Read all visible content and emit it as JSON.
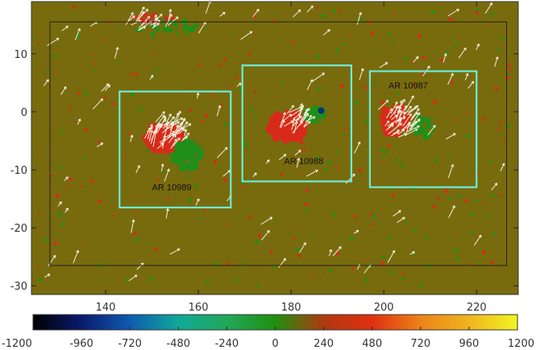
{
  "chart_data": {
    "type": "map",
    "x_ticks": [
      "140",
      "160",
      "180",
      "200",
      "220"
    ],
    "x_tick_values": [
      140,
      160,
      180,
      200,
      220
    ],
    "y_ticks": [
      "10",
      "0",
      "-10",
      "-20",
      "-30"
    ],
    "y_tick_values": [
      10,
      0,
      -10,
      -20,
      -30
    ],
    "xlim": [
      124,
      229
    ],
    "ylim": [
      -31.5,
      19
    ],
    "inner_frame": {
      "x": [
        128,
        226.5
      ],
      "y": [
        -26.5,
        15.5
      ]
    },
    "background_color": "#786b0d",
    "positive_color": "#d82a1a",
    "negative_color": "#1f8f1a",
    "arrow_color": "#f4efdc",
    "box_color": "#6cecd9",
    "regions": [
      {
        "label": "AR 10989",
        "x0": 143,
        "x1": 167,
        "y0": -16.5,
        "y1": 3.5,
        "label_at": [
          150,
          -13.5
        ]
      },
      {
        "label": "AR 10988",
        "x0": 169.5,
        "x1": 193,
        "y0": -12,
        "y1": 8,
        "label_at": [
          178.5,
          -9
        ]
      },
      {
        "label": "AR 10987",
        "x0": 197,
        "x1": 220,
        "y0": -13,
        "y1": 7,
        "label_at": [
          201,
          4
        ]
      }
    ],
    "colorbar": {
      "ticks": [
        "-1200",
        "-960",
        "-720",
        "-480",
        "-240",
        "0",
        "240",
        "480",
        "720",
        "960",
        "1200"
      ],
      "range": [
        -1200,
        1200
      ],
      "stops": [
        "#000000",
        "#0a1a6e",
        "#0d5bb0",
        "#11a898",
        "#22a85a",
        "#1f8f10",
        "#b03a10",
        "#e03010",
        "#ea8418",
        "#f0b41e",
        "#f2f520"
      ]
    }
  }
}
